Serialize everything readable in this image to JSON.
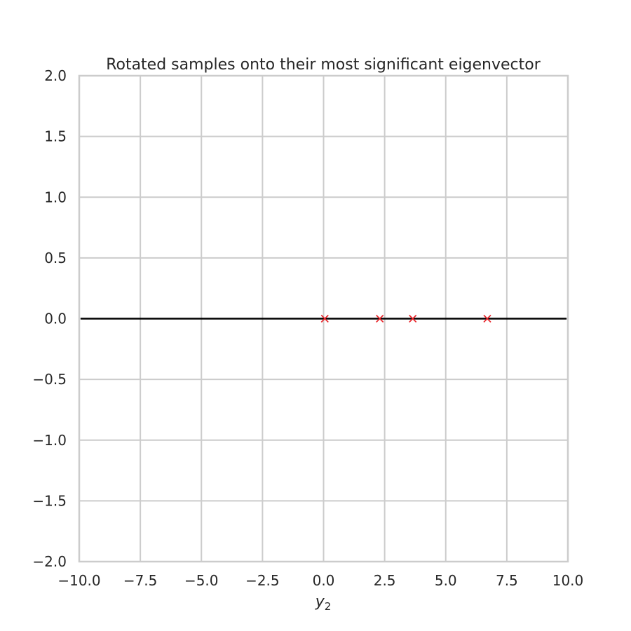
{
  "chart_data": {
    "type": "scatter",
    "title": "Rotated samples onto their most significant eigenvector",
    "xlabel_main": "y",
    "xlabel_sub": "2",
    "ylabel": "",
    "xlim": [
      -10,
      10
    ],
    "ylim": [
      -2,
      2
    ],
    "xticks": [
      -10,
      -7.5,
      -5,
      -2.5,
      0,
      2.5,
      5,
      7.5,
      10
    ],
    "xtick_labels": [
      "−10.0",
      "−7.5",
      "−5.0",
      "−2.5",
      "0.0",
      "2.5",
      "5.0",
      "7.5",
      "10.0"
    ],
    "yticks": [
      2,
      1.5,
      1,
      0.5,
      0,
      -0.5,
      -1,
      -1.5,
      -2
    ],
    "ytick_labels": [
      "2.0",
      "1.5",
      "1.0",
      "0.5",
      "0.0",
      "−0.5",
      "−1.0",
      "−1.5",
      "−2.0"
    ],
    "grid": true,
    "reference_line": {
      "y": 0,
      "color": "#000000"
    },
    "points": {
      "x": [
        0.05,
        2.3,
        3.65,
        6.7
      ],
      "y": [
        0,
        0,
        0,
        0
      ],
      "marker": "x",
      "color": "#e8262b"
    },
    "colors": {
      "grid": "#cccccc",
      "spine": "#cccccc",
      "text": "#262626"
    }
  }
}
